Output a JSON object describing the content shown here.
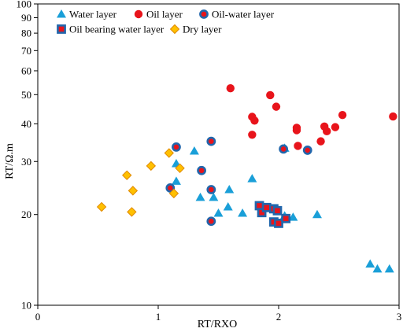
{
  "chart_data": {
    "type": "scatter",
    "xlabel": "RT/RXO",
    "ylabel": "RT/Ω.m",
    "xlim": [
      0,
      3
    ],
    "ylim": [
      10,
      100
    ],
    "y_scale": "log",
    "x_ticks": [
      "0",
      "1",
      "2",
      "3"
    ],
    "y_ticks": [
      "10",
      "20",
      "30",
      "40",
      "50",
      "60",
      "70",
      "80",
      "90",
      "100"
    ],
    "legend_position": "top",
    "series": [
      {
        "name": "Water layer",
        "marker": "triangle",
        "color": "#1a9fd8",
        "points": [
          [
            1.15,
            29.5
          ],
          [
            1.15,
            25.8
          ],
          [
            1.3,
            32.5
          ],
          [
            1.35,
            22.8
          ],
          [
            1.46,
            22.8
          ],
          [
            1.5,
            20.2
          ],
          [
            1.58,
            21.2
          ],
          [
            1.59,
            24.2
          ],
          [
            1.7,
            20.2
          ],
          [
            1.78,
            26.3
          ],
          [
            2.05,
            33.2
          ],
          [
            2.05,
            19.8
          ],
          [
            2.12,
            19.6
          ],
          [
            2.32,
            20.0
          ],
          [
            2.76,
            13.7
          ],
          [
            2.82,
            13.2
          ],
          [
            2.92,
            13.2
          ]
        ]
      },
      {
        "name": "Oil layer",
        "marker": "circle",
        "color": "#e8141b",
        "points": [
          [
            1.6,
            52.5
          ],
          [
            1.78,
            42.2
          ],
          [
            1.8,
            41.0
          ],
          [
            1.78,
            36.8
          ],
          [
            1.93,
            49.8
          ],
          [
            1.98,
            45.6
          ],
          [
            2.15,
            38.8
          ],
          [
            2.15,
            38.1
          ],
          [
            2.16,
            33.8
          ],
          [
            2.35,
            35.0
          ],
          [
            2.38,
            39.2
          ],
          [
            2.4,
            37.8
          ],
          [
            2.47,
            39.0
          ],
          [
            2.53,
            42.8
          ],
          [
            2.95,
            42.3
          ]
        ]
      },
      {
        "name": "Oil-water layer",
        "marker": "circle-ring",
        "color": "#e8141b",
        "ring_color": "#2166ac",
        "points": [
          [
            1.15,
            33.5
          ],
          [
            1.1,
            24.5
          ],
          [
            1.36,
            28.0
          ],
          [
            1.44,
            24.2
          ],
          [
            1.44,
            19.0
          ],
          [
            1.44,
            35.0
          ],
          [
            2.04,
            33.0
          ],
          [
            2.24,
            32.7
          ]
        ]
      },
      {
        "name": "Oil bearing water layer",
        "marker": "square",
        "color": "#e8141b",
        "ring_color": "#2166ac",
        "points": [
          [
            1.84,
            21.4
          ],
          [
            1.86,
            20.3
          ],
          [
            1.9,
            21.1
          ],
          [
            1.96,
            20.9
          ],
          [
            1.99,
            20.6
          ],
          [
            1.96,
            18.9
          ],
          [
            2.0,
            18.7
          ],
          [
            2.06,
            19.4
          ]
        ]
      },
      {
        "name": "Dry layer",
        "marker": "diamond",
        "color": "#ffc000",
        "stroke": "#e08a00",
        "points": [
          [
            0.53,
            21.2
          ],
          [
            0.74,
            27.0
          ],
          [
            0.78,
            20.4
          ],
          [
            0.79,
            24.0
          ],
          [
            0.94,
            29.0
          ],
          [
            1.09,
            32.0
          ],
          [
            1.13,
            23.5
          ],
          [
            1.18,
            28.5
          ]
        ]
      }
    ]
  }
}
